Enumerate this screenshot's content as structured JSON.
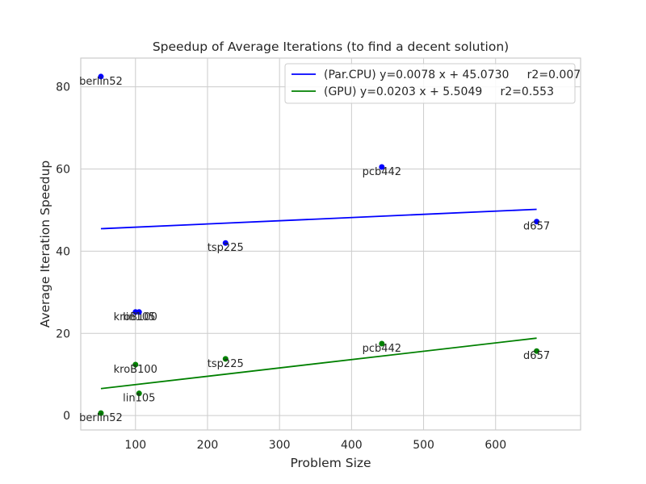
{
  "chart_data": {
    "type": "scatter",
    "title": "Speedup of Average Iterations (to find a decent solution)",
    "xlabel": "Problem Size",
    "ylabel": "Average Iteration Speedup",
    "xlim": [
      24,
      718
    ],
    "ylim": [
      -3.5,
      87
    ],
    "xticks": [
      100,
      200,
      300,
      400,
      500,
      600
    ],
    "yticks": [
      0,
      20,
      40,
      60,
      80
    ],
    "grid": true,
    "legend_position": "top-right",
    "series": [
      {
        "name": "Par.CPU",
        "color": "#0000ff",
        "points": [
          {
            "label": "berlin52",
            "x": 52,
            "y": 82.5
          },
          {
            "label": "kroB100",
            "x": 100,
            "y": 25.2
          },
          {
            "label": "lin105",
            "x": 105,
            "y": 25.2
          },
          {
            "label": "tsp225",
            "x": 225,
            "y": 42.0
          },
          {
            "label": "pcb442",
            "x": 442,
            "y": 60.5
          },
          {
            "label": "d657",
            "x": 657,
            "y": 47.2
          }
        ],
        "fit": {
          "label": "(Par.CPU) y=0.0078 x + 45.0730     r2=0.007",
          "slope": 0.0078,
          "intercept": 45.073
        }
      },
      {
        "name": "GPU",
        "color": "#008000",
        "points": [
          {
            "label": "berlin52",
            "x": 52,
            "y": 0.6
          },
          {
            "label": "kroB100",
            "x": 100,
            "y": 12.4
          },
          {
            "label": "lin105",
            "x": 105,
            "y": 5.4
          },
          {
            "label": "tsp225",
            "x": 225,
            "y": 13.8
          },
          {
            "label": "pcb442",
            "x": 442,
            "y": 17.5
          },
          {
            "label": "d657",
            "x": 657,
            "y": 15.7
          }
        ],
        "fit": {
          "label": "(GPU) y=0.0203 x + 5.5049     r2=0.553",
          "slope": 0.0203,
          "intercept": 5.5049
        }
      }
    ]
  }
}
